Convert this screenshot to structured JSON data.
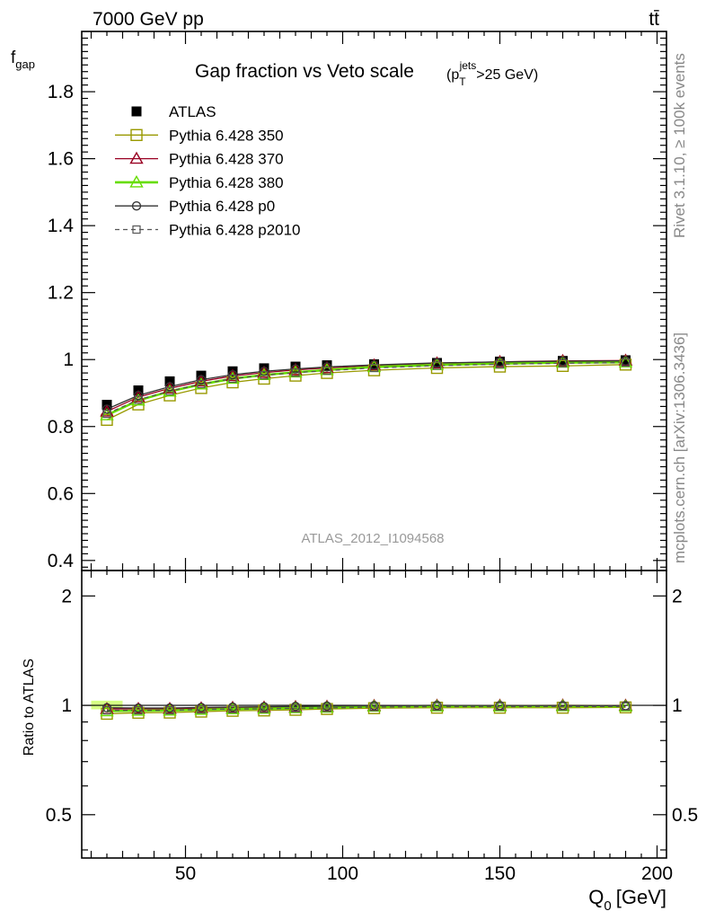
{
  "header": {
    "left": "7000 GeV pp",
    "right": "tt̄"
  },
  "side": {
    "rivet": "Rivet 3.1.10, ≥ 100k events",
    "mcplots": "mcplots.cern.ch [arXiv:1306.3436]"
  },
  "watermark": "ATLAS_2012_I1094568",
  "chart_data": {
    "type": "line",
    "title": "Gap fraction vs Veto scale",
    "title_cut": {
      "pre": "(p",
      "sub": "T",
      "sup": "jets",
      "post": ">25 GeV)"
    },
    "ylabel": {
      "main": "f",
      "sub": "gap"
    },
    "xlabel": {
      "main": "Q",
      "sub": "0",
      "unit": "[GeV]"
    },
    "ratio_ylabel": "Ratio to ATLAS",
    "xlim": [
      17,
      203
    ],
    "ylim": [
      0.37,
      1.98
    ],
    "ratio_ylim": [
      0.38,
      2.35
    ],
    "x_ticks": [
      50,
      100,
      150,
      200
    ],
    "x_tick_labels": [
      "50",
      "100",
      "150",
      "200"
    ],
    "y_ticks": [
      0.4,
      0.6,
      0.8,
      1.0,
      1.2,
      1.4,
      1.6,
      1.8
    ],
    "y_tick_labels": [
      "0.4",
      "0.6",
      "0.8",
      "1",
      "1.2",
      "1.4",
      "1.6",
      "1.8"
    ],
    "ratio_ticks": [
      0.5,
      1,
      2
    ],
    "ratio_tick_labels": [
      "0.5",
      "1",
      "2"
    ],
    "legend_position": "top-left",
    "x": [
      25,
      35,
      45,
      55,
      65,
      75,
      85,
      95,
      110,
      130,
      150,
      170,
      190
    ],
    "series": [
      {
        "name": "ATLAS",
        "color": "#000000",
        "marker": "filled-square",
        "line": "none",
        "values": [
          0.865,
          0.908,
          0.935,
          0.952,
          0.965,
          0.974,
          0.979,
          0.983,
          0.986,
          0.99,
          0.994,
          0.996,
          0.998
        ]
      },
      {
        "name": "Pythia 6.428 350",
        "color": "#999900",
        "marker": "open-square",
        "line": "solid",
        "values": [
          0.82,
          0.866,
          0.893,
          0.915,
          0.932,
          0.943,
          0.952,
          0.96,
          0.968,
          0.975,
          0.979,
          0.981,
          0.985
        ],
        "ratio": [
          0.948,
          0.954,
          0.955,
          0.961,
          0.966,
          0.968,
          0.972,
          0.977,
          0.982,
          0.985,
          0.985,
          0.985,
          0.987
        ]
      },
      {
        "name": "Pythia 6.428 370",
        "color": "#990022",
        "marker": "open-triangle",
        "line": "solid",
        "values": [
          0.845,
          0.888,
          0.914,
          0.935,
          0.951,
          0.961,
          0.969,
          0.975,
          0.983,
          0.989,
          0.993,
          0.996,
          0.997
        ],
        "ratio": [
          0.977,
          0.978,
          0.978,
          0.982,
          0.985,
          0.987,
          0.99,
          0.992,
          0.997,
          0.999,
          0.999,
          1.0,
          0.999
        ]
      },
      {
        "name": "Pythia 6.428 380",
        "color": "#66dd00",
        "marker": "open-triangle",
        "line": "solid-thick",
        "values": [
          0.834,
          0.878,
          0.905,
          0.926,
          0.943,
          0.954,
          0.962,
          0.969,
          0.978,
          0.984,
          0.988,
          0.991,
          0.992
        ],
        "ratio": [
          0.964,
          0.967,
          0.968,
          0.973,
          0.977,
          0.979,
          0.983,
          0.986,
          0.992,
          0.994,
          0.994,
          0.995,
          0.994
        ]
      },
      {
        "name": "Pythia 6.428 p0",
        "color": "#333333",
        "marker": "open-circle",
        "line": "solid",
        "values": [
          0.852,
          0.893,
          0.919,
          0.94,
          0.955,
          0.965,
          0.972,
          0.978,
          0.984,
          0.99,
          0.993,
          0.995,
          0.996
        ],
        "ratio": [
          0.985,
          0.983,
          0.983,
          0.987,
          0.989,
          0.991,
          0.993,
          0.995,
          0.998,
          1.0,
          0.999,
          0.999,
          0.998
        ]
      },
      {
        "name": "Pythia 6.428 p2010",
        "color": "#555555",
        "marker": "open-square-small",
        "line": "dashed",
        "values": [
          0.838,
          0.88,
          0.906,
          0.927,
          0.943,
          0.953,
          0.961,
          0.967,
          0.975,
          0.982,
          0.986,
          0.989,
          0.991
        ],
        "ratio": [
          0.969,
          0.969,
          0.969,
          0.974,
          0.977,
          0.978,
          0.982,
          0.984,
          0.989,
          0.992,
          0.992,
          0.993,
          0.993
        ]
      }
    ],
    "data_band": {
      "color": "#ccff66",
      "x_range": [
        20,
        30
      ],
      "ratio_range": [
        0.975,
        1.03
      ]
    }
  }
}
